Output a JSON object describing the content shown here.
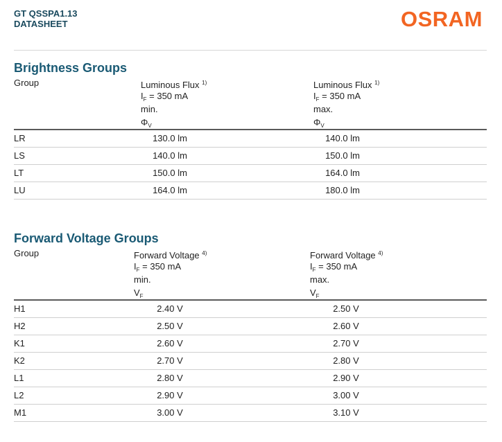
{
  "header": {
    "product": "GT QSSPA1.13",
    "doc_type": "DATASHEET",
    "logo_text": "OSRAM",
    "logo_color": "#f26522"
  },
  "brightness": {
    "title": "Brightness Groups",
    "columns": {
      "group": "Group",
      "min": {
        "name": "Luminous Flux",
        "note": "1)",
        "cond_symbol": "I",
        "cond_sub": "F",
        "cond_value": "= 350 mA",
        "limit": "min.",
        "symbol": "Φ",
        "symbol_sub": "V"
      },
      "max": {
        "name": "Luminous Flux",
        "note": "1)",
        "cond_symbol": "I",
        "cond_sub": "F",
        "cond_value": "= 350 mA",
        "limit": "max.",
        "symbol": "Φ",
        "symbol_sub": "V"
      }
    },
    "rows": [
      {
        "group": "LR",
        "min": "130.0 lm",
        "max": "140.0 lm"
      },
      {
        "group": "LS",
        "min": "140.0 lm",
        "max": "150.0 lm"
      },
      {
        "group": "LT",
        "min": "150.0 lm",
        "max": "164.0 lm"
      },
      {
        "group": "LU",
        "min": "164.0 lm",
        "max": "180.0 lm"
      }
    ]
  },
  "voltage": {
    "title": "Forward Voltage Groups",
    "columns": {
      "group": "Group",
      "min": {
        "name": "Forward Voltage",
        "note": "4)",
        "cond_symbol": "I",
        "cond_sub": "F",
        "cond_value": "= 350 mA",
        "limit": "min.",
        "symbol": "V",
        "symbol_sub": "F"
      },
      "max": {
        "name": "Forward Voltage",
        "note": "4)",
        "cond_symbol": "I",
        "cond_sub": "F",
        "cond_value": "= 350 mA",
        "limit": "max.",
        "symbol": "V",
        "symbol_sub": "F"
      }
    },
    "rows": [
      {
        "group": "H1",
        "min": "2.40 V",
        "max": "2.50 V"
      },
      {
        "group": "H2",
        "min": "2.50 V",
        "max": "2.60 V"
      },
      {
        "group": "K1",
        "min": "2.60 V",
        "max": "2.70 V"
      },
      {
        "group": "K2",
        "min": "2.70 V",
        "max": "2.80 V"
      },
      {
        "group": "L1",
        "min": "2.80 V",
        "max": "2.90 V"
      },
      {
        "group": "L2",
        "min": "2.90 V",
        "max": "3.00 V"
      },
      {
        "group": "M1",
        "min": "3.00 V",
        "max": "3.10 V"
      }
    ]
  }
}
